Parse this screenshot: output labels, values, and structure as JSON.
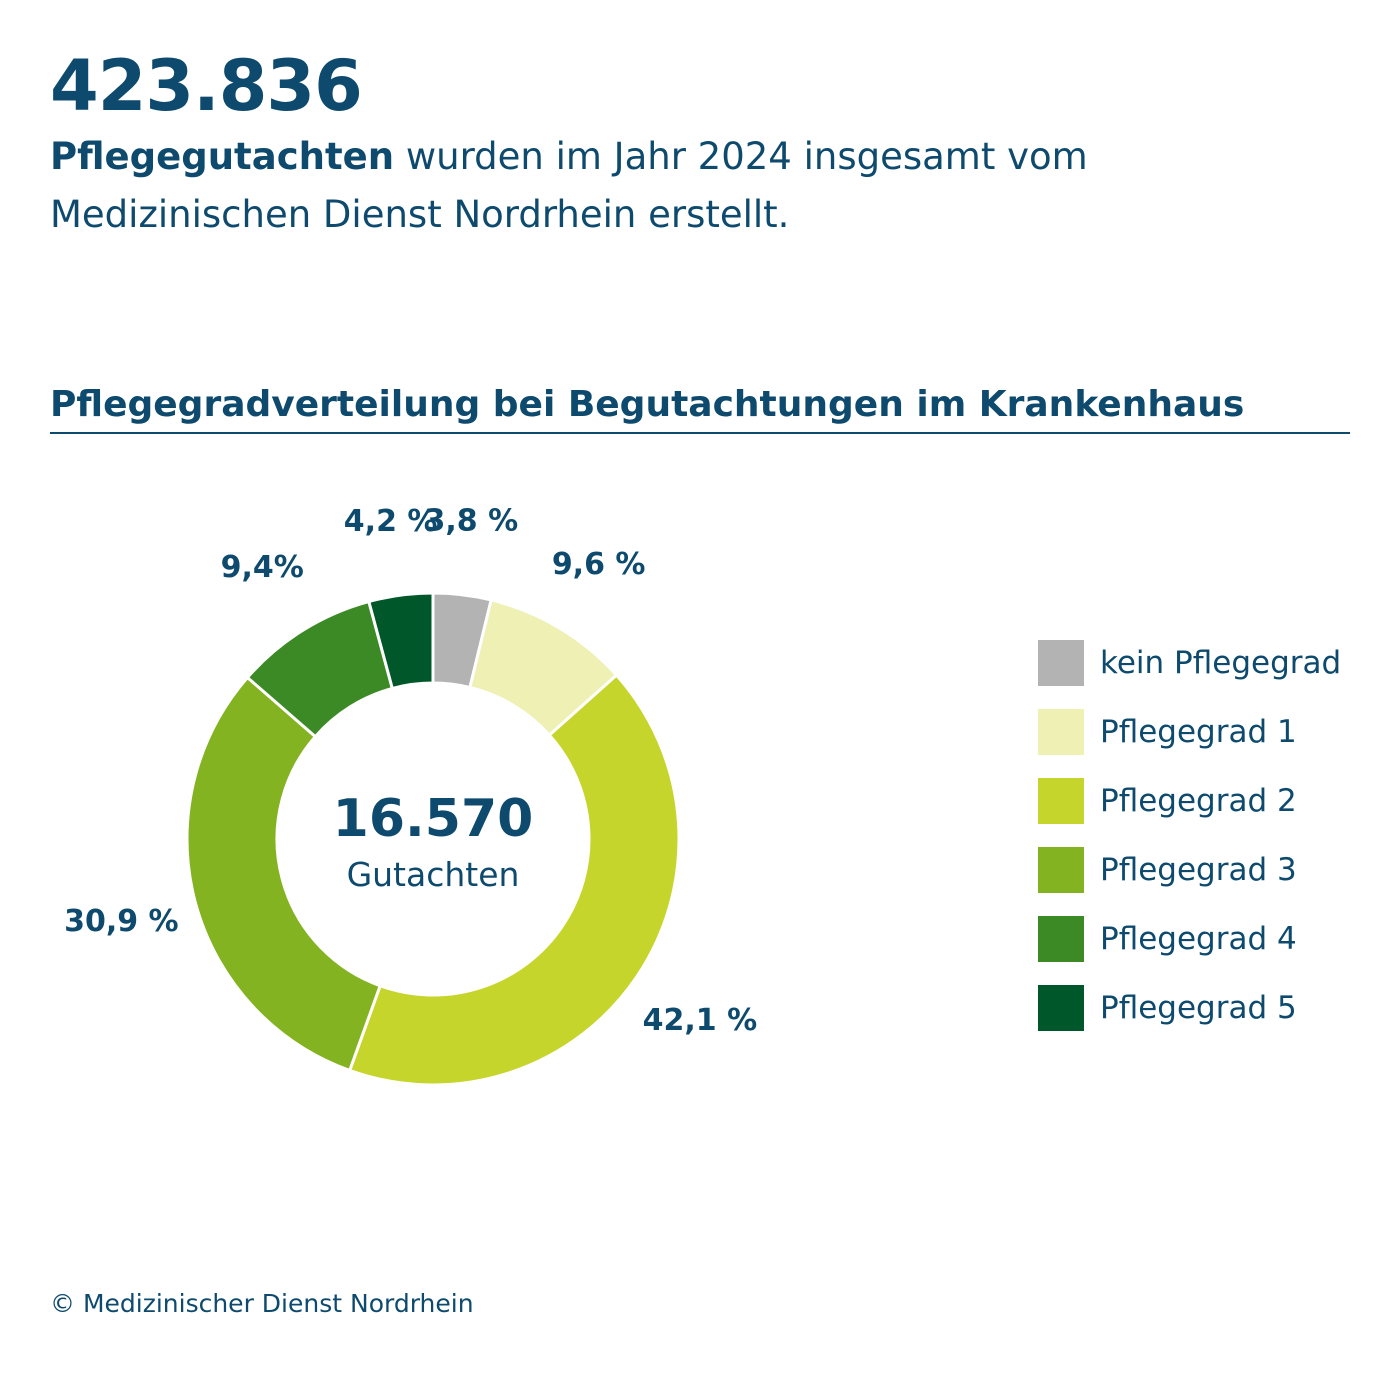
{
  "header": {
    "total_value": "423.836",
    "intro_bold": "Pflegegutachten",
    "intro_line1_rest": " wurden im Jahr 2024 insgesamt vom",
    "intro_line2": "Medizinischen Dienst Nordrhein erstellt."
  },
  "chart_data": {
    "type": "pie",
    "title": "Pflegegradverteilung bei Begutachtungen im Krankenhaus",
    "center_value": "16.570",
    "center_label": "Gutachten",
    "categories": [
      "kein Pflegegrad",
      "Pflegegrad 1",
      "Pflegegrad 2",
      "Pflegegrad 3",
      "Pflegegrad 4",
      "Pflegegrad 5"
    ],
    "values": [
      3.8,
      9.6,
      42.1,
      30.9,
      9.4,
      4.2
    ],
    "value_labels": [
      "3,8 %",
      "9,6 %",
      "42,1 %",
      "30,9 %",
      "9,4%",
      "4,2 %"
    ],
    "colors": [
      "#b3b3b3",
      "#eef0b4",
      "#c6d52b",
      "#84b321",
      "#3b8a25",
      "#00582a"
    ],
    "legend_position": "right"
  },
  "footer": {
    "copyright": "© Medizinischer Dienst Nordrhein"
  }
}
